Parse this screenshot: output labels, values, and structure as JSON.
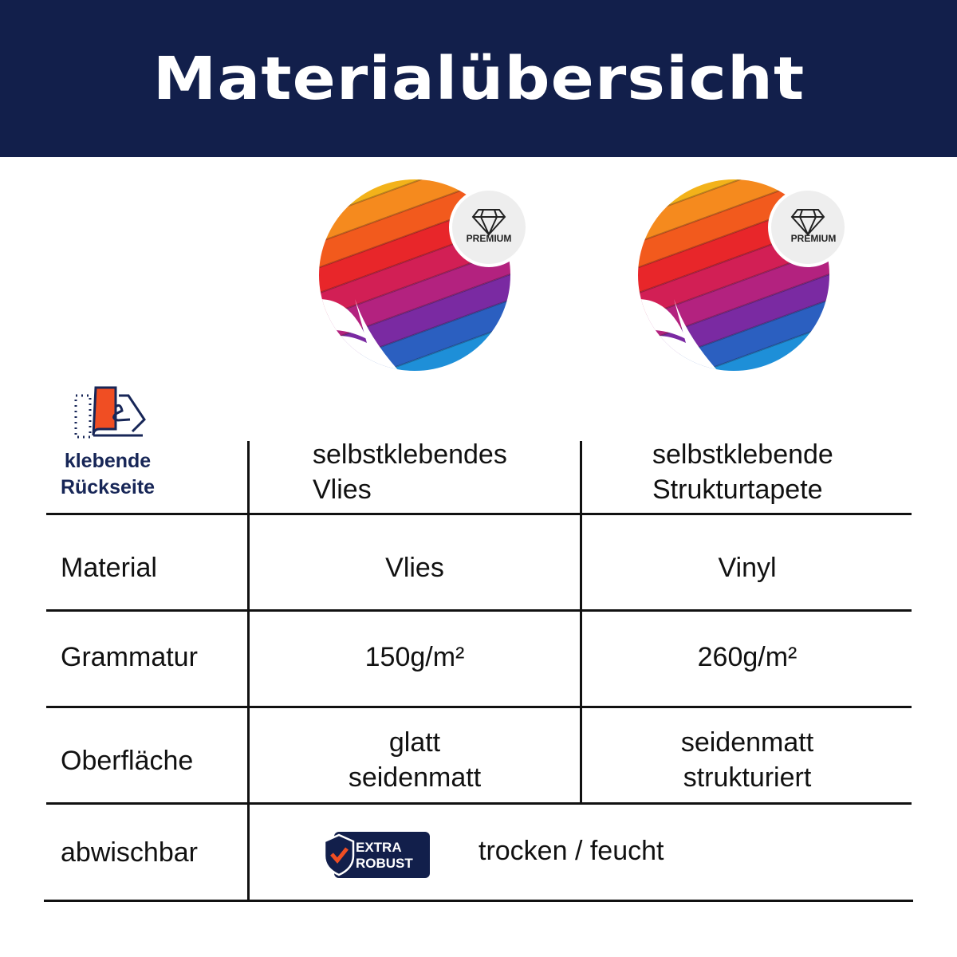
{
  "header": {
    "title": "Materialübersicht"
  },
  "products": [
    {
      "badge": "PREMIUM",
      "name_line1": "selbstklebendes",
      "name_line2": "Vlies"
    },
    {
      "badge": "PREMIUM",
      "name_line1": "selbstklebende",
      "name_line2": "Strukturtapete"
    }
  ],
  "adhesive": {
    "icon": "adhesive-backing-icon",
    "label_line1": "klebende",
    "label_line2": "Rückseite"
  },
  "rows": [
    {
      "label": "Material",
      "col1": "Vlies",
      "col2": "Vinyl"
    },
    {
      "label": "Grammatur",
      "col1": "150g/m²",
      "col2": "260g/m²"
    },
    {
      "label": "Oberfläche",
      "col1_line1": "glatt",
      "col1_line2": "seidenmatt",
      "col2_line1": "seidenmatt",
      "col2_line2": "strukturiert"
    },
    {
      "label": "abwischbar",
      "badge_line1": "EXTRA",
      "badge_line2": "ROBUST",
      "value": "trocken / feucht"
    }
  ],
  "colors": {
    "navy": "#121f4b",
    "accent": "#f04e23"
  }
}
